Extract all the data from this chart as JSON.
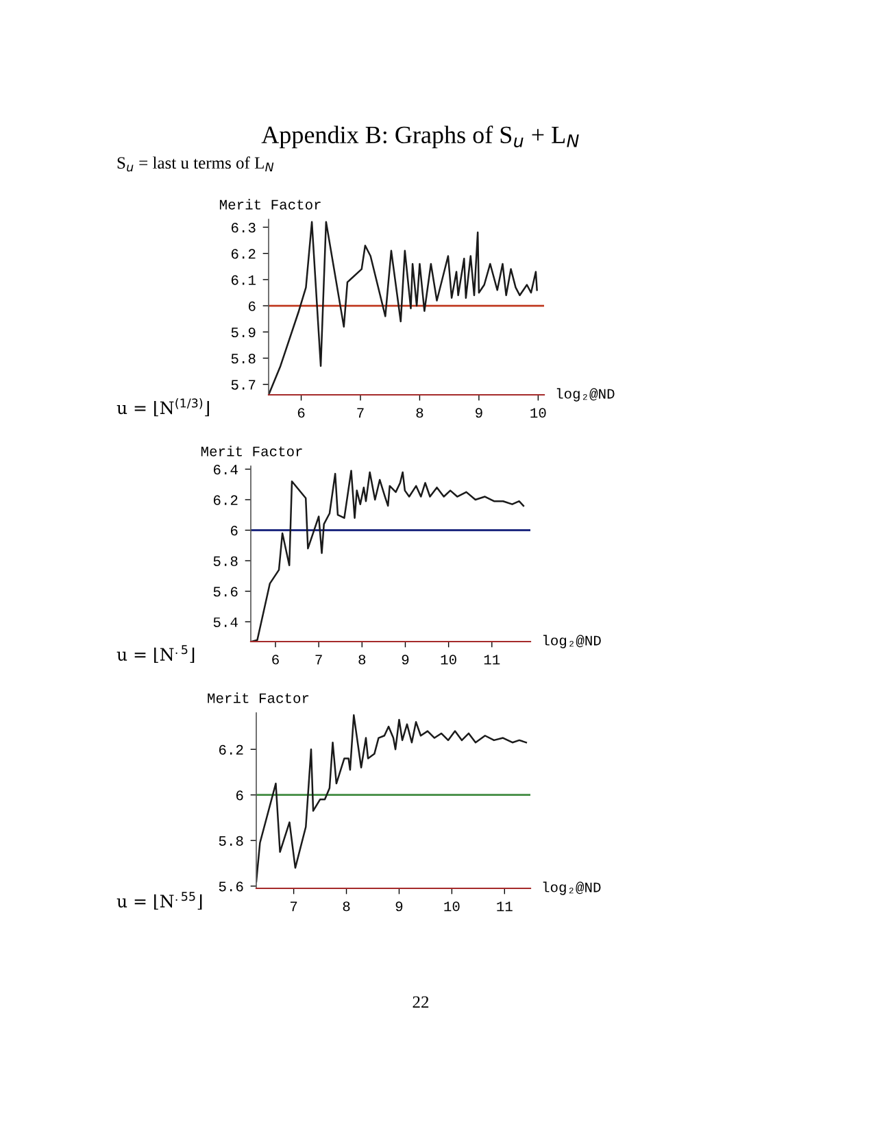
{
  "chart_data": [
    {
      "type": "line",
      "title": "Appendix B: Graphs of S$_{u}$ + L$_{N}$",
      "subtitle": "S$_{u}$ = last u terms of L$_{N}$",
      "ylabel": "Merit Factor",
      "xlabel": "log₂@ND",
      "annotations": [
        "u = ⌊N$^{(1/3)}$⌋"
      ],
      "xlim": [
        5.45,
        10.1
      ],
      "ylim": [
        5.66,
        6.33
      ],
      "xticks": [
        6,
        7,
        8,
        9,
        10
      ],
      "yticks": [
        5.7,
        5.8,
        5.9,
        6,
        6.1,
        6.2,
        6.3
      ],
      "ref_lines": [
        {
          "axis": "y",
          "value": 6,
          "label": null,
          "color": "#c03a20"
        }
      ],
      "series": [
        {
          "color": "#1a1a1a",
          "x": [
            5.45,
            5.65,
            5.96,
            6.08,
            6.18,
            6.33,
            6.42,
            6.72,
            6.78,
            7.02,
            7.08,
            7.17,
            7.42,
            7.52,
            7.68,
            7.75,
            7.85,
            7.88,
            7.95,
            8.0,
            8.08,
            8.19,
            8.29,
            8.48,
            8.54,
            8.62,
            8.65,
            8.75,
            8.78,
            8.86,
            8.92,
            8.98,
            9.0,
            9.09,
            9.19,
            9.31,
            9.4,
            9.46,
            9.54,
            9.62,
            9.69,
            9.81,
            9.88,
            9.96,
            9.98
          ],
          "values": [
            5.66,
            5.77,
            5.98,
            6.07,
            6.32,
            5.77,
            6.32,
            5.92,
            6.09,
            6.14,
            6.23,
            6.19,
            5.96,
            6.21,
            5.94,
            6.21,
            5.99,
            6.16,
            6.0,
            6.16,
            5.98,
            6.16,
            6.02,
            6.19,
            6.03,
            6.13,
            6.04,
            6.18,
            6.03,
            6.19,
            6.04,
            6.28,
            6.05,
            6.08,
            6.16,
            6.06,
            6.16,
            6.04,
            6.14,
            6.07,
            6.04,
            6.08,
            6.05,
            6.13,
            6.06
          ]
        }
      ]
    },
    {
      "type": "line",
      "ylabel": "Merit Factor",
      "xlabel": "log₂@ND",
      "annotations": [
        "u = ⌊N$^{.5}$⌋"
      ],
      "xlim": [
        5.43,
        11.89
      ],
      "ylim": [
        5.27,
        6.42
      ],
      "xticks": [
        6,
        7,
        8,
        9,
        10,
        11
      ],
      "yticks": [
        5.4,
        5.6,
        5.8,
        6,
        6.2,
        6.4
      ],
      "ref_lines": [
        {
          "axis": "y",
          "value": 6,
          "label": null,
          "color": "#1f2a80"
        }
      ],
      "series": [
        {
          "color": "#1a1a1a",
          "x": [
            5.45,
            5.58,
            5.87,
            6.08,
            6.16,
            6.32,
            6.38,
            6.7,
            6.75,
            7.0,
            7.07,
            7.12,
            7.25,
            7.38,
            7.44,
            7.59,
            7.75,
            7.83,
            7.88,
            7.96,
            8.04,
            8.09,
            8.18,
            8.3,
            8.41,
            8.53,
            8.6,
            8.64,
            8.78,
            8.88,
            8.94,
            8.99,
            9.09,
            9.25,
            9.36,
            9.46,
            9.57,
            9.73,
            9.89,
            10.04,
            10.2,
            10.41,
            10.62,
            10.84,
            11.05,
            11.26,
            11.47,
            11.63,
            11.73
          ],
          "values": [
            5.27,
            5.28,
            5.65,
            5.74,
            5.98,
            5.77,
            6.32,
            6.21,
            5.88,
            6.09,
            5.85,
            6.04,
            6.11,
            6.37,
            6.1,
            6.08,
            6.39,
            6.08,
            6.26,
            6.17,
            6.28,
            6.19,
            6.38,
            6.2,
            6.33,
            6.22,
            6.16,
            6.29,
            6.25,
            6.31,
            6.38,
            6.26,
            6.22,
            6.29,
            6.22,
            6.31,
            6.22,
            6.28,
            6.22,
            6.26,
            6.22,
            6.25,
            6.2,
            6.22,
            6.19,
            6.19,
            6.17,
            6.19,
            6.16
          ]
        }
      ]
    },
    {
      "type": "line",
      "ylabel": "Merit Factor",
      "xlabel": "log₂@ND",
      "annotations": [
        "u = ⌊N$^{.55}$⌋",
        "22"
      ],
      "xlim": [
        6.29,
        11.49
      ],
      "ylim": [
        5.59,
        6.36
      ],
      "xticks": [
        7,
        8,
        9,
        10,
        11
      ],
      "yticks": [
        5.6,
        5.8,
        6,
        6.2
      ],
      "ref_lines": [
        {
          "axis": "y",
          "value": 6,
          "label": null,
          "color": "#3f8a3f"
        }
      ],
      "series": [
        {
          "color": "#1a1a1a",
          "x": [
            6.29,
            6.36,
            6.66,
            6.74,
            6.92,
            7.03,
            7.23,
            7.33,
            7.37,
            7.5,
            7.59,
            7.68,
            7.74,
            7.81,
            7.96,
            8.04,
            8.07,
            8.14,
            8.28,
            8.37,
            8.41,
            8.53,
            8.61,
            8.72,
            8.8,
            8.89,
            8.93,
            9.0,
            9.06,
            9.15,
            9.24,
            9.32,
            9.41,
            9.54,
            9.67,
            9.8,
            9.93,
            10.06,
            10.19,
            10.32,
            10.45,
            10.63,
            10.8,
            10.97,
            11.15,
            11.28,
            11.41
          ],
          "values": [
            5.62,
            5.79,
            6.05,
            5.75,
            5.88,
            5.68,
            5.86,
            6.2,
            5.93,
            5.98,
            5.98,
            6.03,
            6.23,
            6.05,
            6.16,
            6.16,
            6.11,
            6.35,
            6.12,
            6.25,
            6.16,
            6.18,
            6.25,
            6.26,
            6.3,
            6.25,
            6.2,
            6.33,
            6.24,
            6.31,
            6.23,
            6.32,
            6.26,
            6.28,
            6.25,
            6.27,
            6.24,
            6.28,
            6.24,
            6.27,
            6.23,
            6.26,
            6.24,
            6.25,
            6.23,
            6.24,
            6.23
          ]
        }
      ]
    }
  ]
}
